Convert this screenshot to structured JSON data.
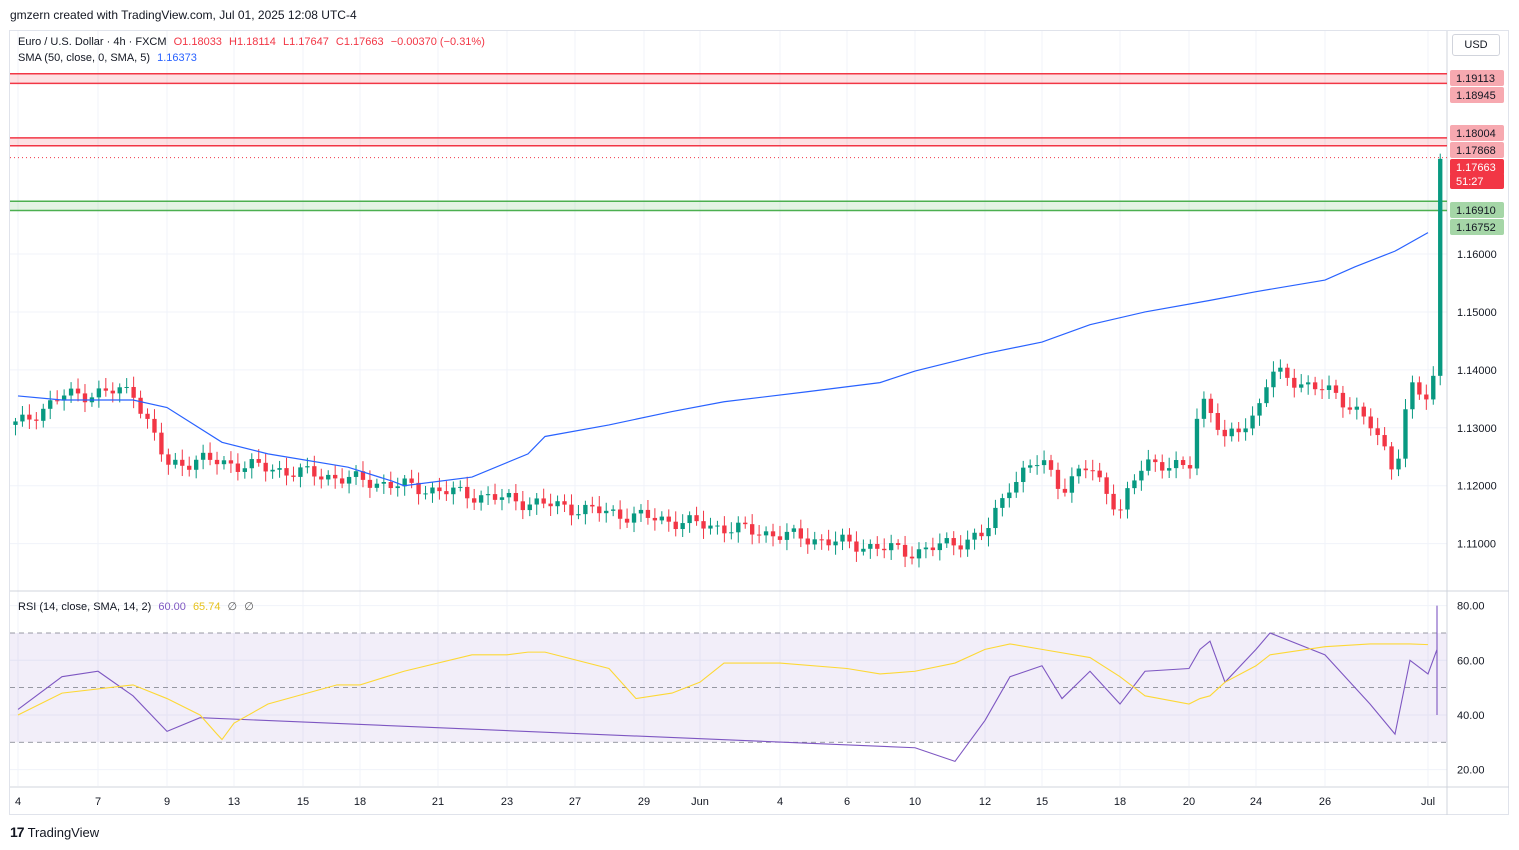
{
  "header": {
    "attribution": "gmzern created with TradingView.com, Jul 01, 2025 12:08 UTC-4"
  },
  "legend": {
    "symbol": "Euro / U.S. Dollar · 4h · FXCM",
    "open": "O1.18033",
    "high": "H1.18114",
    "low": "L1.17647",
    "close": "C1.17663",
    "change": "−0.00370 (−0.31%)",
    "sma_label": "SMA (50, close, 0, SMA, 5)",
    "sma_value": "1.16373",
    "rsi_label": "RSI (14, close, SMA, 14, 2)",
    "rsi_value": "60.00",
    "rsi_ma_value": "65.74",
    "rsi_extra1": "∅",
    "rsi_extra2": "∅"
  },
  "currency_button": "USD",
  "footer": {
    "brand": "TradingView"
  },
  "colors": {
    "up": "#089981",
    "down": "#f23645",
    "sma": "#2962ff",
    "rsi": "#7e57c2",
    "rsi_ma": "#fdd835",
    "resistance": "#f23645",
    "support": "#4caf50"
  },
  "chart_data": [
    {
      "type": "candlestick",
      "title": "Euro / U.S. Dollar · 4h · FXCM",
      "ylim": [
        1.102,
        1.1985
      ],
      "y_ticks": [
        "1.11000",
        "1.12000",
        "1.13000",
        "1.14000",
        "1.15000",
        "1.16000"
      ],
      "x_ticks": [
        "4",
        "7",
        "9",
        "13",
        "15",
        "18",
        "21",
        "23",
        "27",
        "29",
        "Jun",
        "4",
        "6",
        "10",
        "12",
        "15",
        "18",
        "20",
        "24",
        "26",
        "Jul"
      ],
      "price_labels": [
        {
          "text": "1.19113",
          "kind": "resistance"
        },
        {
          "text": "1.18945",
          "kind": "resistance"
        },
        {
          "text": "1.18004",
          "kind": "resistance"
        },
        {
          "text": "1.17868",
          "kind": "resistance"
        },
        {
          "text": "1.17663",
          "kind": "last"
        },
        {
          "text": "51:27",
          "kind": "countdown"
        },
        {
          "text": "1.16910",
          "kind": "support"
        },
        {
          "text": "1.16752",
          "kind": "support"
        }
      ],
      "zones": [
        {
          "kind": "resistance",
          "from": 1.18945,
          "to": 1.19113
        },
        {
          "kind": "resistance",
          "from": 1.17868,
          "to": 1.18004
        },
        {
          "kind": "support",
          "from": 1.16752,
          "to": 1.1691
        }
      ],
      "last_price": 1.17663,
      "anchors": [
        {
          "x": "4",
          "price": 1.1305
        },
        {
          "x": "6",
          "price": 1.1355
        },
        {
          "x": "8",
          "price": 1.1365
        },
        {
          "x": "9",
          "price": 1.1235
        },
        {
          "x": "9",
          "price": 1.1245
        },
        {
          "x": "10",
          "price": 1.1085
        },
        {
          "x": "12",
          "price": 1.1115
        },
        {
          "x": "13",
          "price": 1.1205
        },
        {
          "x": "14",
          "price": 1.1245
        },
        {
          "x": "15",
          "price": 1.1195
        },
        {
          "x": "16",
          "price": 1.1235
        },
        {
          "x": "17",
          "price": 1.1155
        },
        {
          "x": "18",
          "price": 1.1245
        },
        {
          "x": "19",
          "price": 1.1225
        },
        {
          "x": "20",
          "price": 1.1355
        },
        {
          "x": "21",
          "price": 1.1335
        },
        {
          "x": "22",
          "price": 1.1275
        },
        {
          "x": "23",
          "price": 1.1325
        },
        {
          "x": "24",
          "price": 1.1395
        },
        {
          "x": "26",
          "price": 1.1365
        },
        {
          "x": "27",
          "price": 1.1335
        },
        {
          "x": "28",
          "price": 1.1305
        },
        {
          "x": "29",
          "price": 1.1225
        },
        {
          "x": "29",
          "price": 1.1375
        },
        {
          "x": "30",
          "price": 1.1345
        },
        {
          "x": "Jun",
          "price": 1.1405
        },
        {
          "x": "3",
          "price": 1.1425
        },
        {
          "x": "3",
          "price": 1.1385
        },
        {
          "x": "4",
          "price": 1.1385
        },
        {
          "x": "5",
          "price": 1.1425
        },
        {
          "x": "5",
          "price": 1.1425
        },
        {
          "x": "6",
          "price": 1.1395
        },
        {
          "x": "8",
          "price": 1.1405
        },
        {
          "x": "10",
          "price": 1.1395
        },
        {
          "x": "11",
          "price": 1.1445
        },
        {
          "x": "11",
          "price": 1.1535
        },
        {
          "x": "12",
          "price": 1.1595
        },
        {
          "x": "13",
          "price": 1.1535
        },
        {
          "x": "15",
          "price": 1.1535
        },
        {
          "x": "16",
          "price": 1.1575
        },
        {
          "x": "17",
          "price": 1.1515
        },
        {
          "x": "18",
          "price": 1.1495
        },
        {
          "x": "19",
          "price": 1.1475
        },
        {
          "x": "20",
          "price": 1.1515
        },
        {
          "x": "21",
          "price": 1.1535
        },
        {
          "x": "22",
          "price": 1.1475
        },
        {
          "x": "23",
          "price": 1.1535
        },
        {
          "x": "24",
          "price": 1.1605
        },
        {
          "x": "25",
          "price": 1.1605
        },
        {
          "x": "25",
          "price": 1.1595
        },
        {
          "x": "26",
          "price": 1.1725
        },
        {
          "x": "27",
          "price": 1.1695
        },
        {
          "x": "28",
          "price": 1.1735
        },
        {
          "x": "29",
          "price": 1.1705
        },
        {
          "x": "30",
          "price": 1.1795
        },
        {
          "x": "Jul",
          "price": 1.1803
        },
        {
          "x": "Jul",
          "price": 1.17663
        }
      ],
      "sma": {
        "name": "SMA (50, close, 0, SMA, 5)",
        "points": [
          {
            "x": "4",
            "y": 1.1355
          },
          {
            "x": "6",
            "y": 1.1348
          },
          {
            "x": "8",
            "y": 1.1348
          },
          {
            "x": "9",
            "y": 1.1335
          },
          {
            "x": "12",
            "y": 1.1275
          },
          {
            "x": "14",
            "y": 1.1255
          },
          {
            "x": "17",
            "y": 1.1232
          },
          {
            "x": "19",
            "y": 1.1208
          },
          {
            "x": "20",
            "y": 1.12
          },
          {
            "x": "22",
            "y": 1.1215
          },
          {
            "x": "24",
            "y": 1.1255
          },
          {
            "x": "26",
            "y": 1.1285
          },
          {
            "x": "28",
            "y": 1.1305
          },
          {
            "x": "30",
            "y": 1.1328
          },
          {
            "x": "3",
            "y": 1.1345
          },
          {
            "x": "5",
            "y": 1.1362
          },
          {
            "x": "8",
            "y": 1.1378
          },
          {
            "x": "10",
            "y": 1.1398
          },
          {
            "x": "12",
            "y": 1.1428
          },
          {
            "x": "15",
            "y": 1.1448
          },
          {
            "x": "17",
            "y": 1.1478
          },
          {
            "x": "19",
            "y": 1.15
          },
          {
            "x": "22",
            "y": 1.152
          },
          {
            "x": "24",
            "y": 1.1535
          },
          {
            "x": "26",
            "y": 1.1555
          },
          {
            "x": "27",
            "y": 1.1578
          },
          {
            "x": "29",
            "y": 1.1605
          },
          {
            "x": "Jul",
            "y": 1.1637
          }
        ]
      }
    },
    {
      "type": "line",
      "title": "RSI (14, close, SMA, 14, 2)",
      "ylim": [
        14,
        85
      ],
      "y_ticks": [
        "20.00",
        "40.00",
        "60.00",
        "80.00"
      ],
      "levels": {
        "upper": 70,
        "middle": 50,
        "lower": 30
      },
      "series": [
        {
          "name": "RSI",
          "points": [
            {
              "x": "4",
              "y": 42
            },
            {
              "x": "6",
              "y": 54
            },
            {
              "x": "7",
              "y": 56
            },
            {
              "x": "8",
              "y": 47
            },
            {
              "x": "9",
              "y": 34
            },
            {
              "x": "9",
              "y": 39
            },
            {
              "x": "10",
              "y": 28
            },
            {
              "x": "11",
              "y": 23
            },
            {
              "x": "12",
              "y": 38
            },
            {
              "x": "13",
              "y": 54
            },
            {
              "x": "14",
              "y": 58
            },
            {
              "x": "15",
              "y": 46
            },
            {
              "x": "16",
              "y": 56
            },
            {
              "x": "17",
              "y": 44
            },
            {
              "x": "18",
              "y": 56
            },
            {
              "x": "19",
              "y": 57
            },
            {
              "x": "20",
              "y": 64
            },
            {
              "x": "21",
              "y": 67
            },
            {
              "x": "22",
              "y": 52
            },
            {
              "x": "23",
              "y": 64
            },
            {
              "x": "24",
              "y": 70
            },
            {
              "x": "26",
              "y": 62
            },
            {
              "x": "27",
              "y": 50
            },
            {
              "x": "28",
              "y": 44
            },
            {
              "x": "29",
              "y": 33
            },
            {
              "x": "29",
              "y": 60
            },
            {
              "x": "30",
              "y": 55
            },
            {
              "x": "Jun",
              "y": 64
            },
            {
              "x": "3",
              "y": 66
            },
            {
              "x": "3",
              "y": 55
            },
            {
              "x": "4",
              "y": 56
            },
            {
              "x": "5",
              "y": 62
            },
            {
              "x": "5",
              "y": 60
            },
            {
              "x": "6",
              "y": 48
            },
            {
              "x": "8",
              "y": 54
            },
            {
              "x": "10",
              "y": 50
            },
            {
              "x": "11",
              "y": 60
            },
            {
              "x": "11",
              "y": 70
            },
            {
              "x": "12",
              "y": 80
            },
            {
              "x": "13",
              "y": 56
            },
            {
              "x": "15",
              "y": 58
            },
            {
              "x": "16",
              "y": 61
            },
            {
              "x": "17",
              "y": 47
            },
            {
              "x": "18",
              "y": 42
            },
            {
              "x": "19",
              "y": 40
            },
            {
              "x": "20",
              "y": 52
            },
            {
              "x": "21",
              "y": 54
            },
            {
              "x": "22",
              "y": 42
            },
            {
              "x": "23",
              "y": 60
            },
            {
              "x": "24",
              "y": 68
            },
            {
              "x": "25",
              "y": 66
            },
            {
              "x": "25",
              "y": 62
            },
            {
              "x": "26",
              "y": 72
            },
            {
              "x": "27",
              "y": 66
            },
            {
              "x": "28",
              "y": 68
            },
            {
              "x": "29",
              "y": 64
            },
            {
              "x": "30",
              "y": 70
            },
            {
              "x": "Jul",
              "y": 69
            },
            {
              "x": "Jul",
              "y": 60
            }
          ]
        },
        {
          "name": "RSI-based MA",
          "points": [
            {
              "x": "4",
              "y": 40
            },
            {
              "x": "6",
              "y": 48
            },
            {
              "x": "8",
              "y": 51
            },
            {
              "x": "9",
              "y": 46
            },
            {
              "x": "10",
              "y": 40
            },
            {
              "x": "11",
              "y": 33
            },
            {
              "x": "12",
              "y": 31
            },
            {
              "x": "13",
              "y": 37
            },
            {
              "x": "14",
              "y": 44
            },
            {
              "x": "16",
              "y": 51
            },
            {
              "x": "18",
              "y": 51
            },
            {
              "x": "20",
              "y": 56
            },
            {
              "x": "22",
              "y": 62
            },
            {
              "x": "23",
              "y": 62
            },
            {
              "x": "24",
              "y": 63
            },
            {
              "x": "26",
              "y": 63
            },
            {
              "x": "28",
              "y": 57
            },
            {
              "x": "29",
              "y": 46
            },
            {
              "x": "30",
              "y": 48
            },
            {
              "x": "Jun",
              "y": 52
            },
            {
              "x": "3",
              "y": 59
            },
            {
              "x": "4",
              "y": 59
            },
            {
              "x": "6",
              "y": 57
            },
            {
              "x": "8",
              "y": 55
            },
            {
              "x": "10",
              "y": 56
            },
            {
              "x": "11",
              "y": 59
            },
            {
              "x": "12",
              "y": 64
            },
            {
              "x": "13",
              "y": 66
            },
            {
              "x": "15",
              "y": 64
            },
            {
              "x": "17",
              "y": 61
            },
            {
              "x": "18",
              "y": 54
            },
            {
              "x": "19",
              "y": 47
            },
            {
              "x": "20",
              "y": 44
            },
            {
              "x": "21",
              "y": 46
            },
            {
              "x": "22",
              "y": 47
            },
            {
              "x": "23",
              "y": 52
            },
            {
              "x": "24",
              "y": 58
            },
            {
              "x": "25",
              "y": 62
            },
            {
              "x": "26",
              "y": 65
            },
            {
              "x": "28",
              "y": 66
            },
            {
              "x": "30",
              "y": 66
            },
            {
              "x": "Jul",
              "y": 65.74
            }
          ]
        }
      ]
    }
  ]
}
